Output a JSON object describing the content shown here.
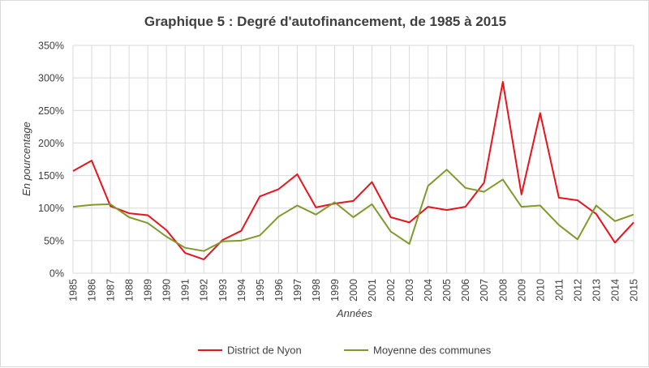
{
  "chart_data": {
    "type": "line",
    "title": "Graphique 5 : Degré d'autofinancement, de 1985 à 2015",
    "xlabel": "Années",
    "ylabel": "En pourcentage",
    "ylim": [
      0,
      350
    ],
    "y_ticks": [
      0,
      50,
      100,
      150,
      200,
      250,
      300,
      350
    ],
    "y_tick_suffix": "%",
    "grid": "vertical and horizontal",
    "legend_position": "bottom",
    "x": [
      "1985",
      "1986",
      "1987",
      "1988",
      "1989",
      "1990",
      "1991",
      "1992",
      "1993",
      "1994",
      "1995",
      "1996",
      "1997",
      "1998",
      "1999",
      "2000",
      "2001",
      "2002",
      "2003",
      "2004",
      "2005",
      "2006",
      "2007",
      "2008",
      "2009",
      "2010",
      "2011",
      "2012",
      "2013",
      "2014",
      "2015"
    ],
    "series": [
      {
        "name": "District de Nyon",
        "color": "#e8141c",
        "values": [
          157,
          173,
          103,
          92,
          89,
          66,
          31,
          21,
          51,
          65,
          118,
          129,
          152,
          101,
          107,
          111,
          140,
          86,
          78,
          102,
          97,
          102,
          139,
          294,
          121,
          246,
          116,
          112,
          91,
          47,
          78
        ]
      },
      {
        "name": "Moyenne des communes",
        "color": "#7f9a2a",
        "values": [
          102,
          105,
          106,
          86,
          77,
          56,
          39,
          34,
          49,
          50,
          58,
          87,
          104,
          90,
          109,
          86,
          106,
          64,
          45,
          134,
          159,
          131,
          125,
          144,
          102,
          104,
          74,
          52,
          104,
          80,
          90
        ]
      }
    ]
  }
}
